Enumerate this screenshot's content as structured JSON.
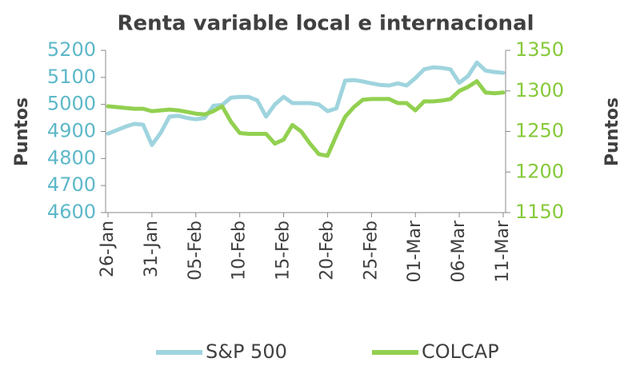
{
  "chart_data": {
    "type": "line",
    "title": "Renta variable local e internacional",
    "ylabel": "Puntos",
    "y2label": "Puntos",
    "categories": [
      "26-Jan",
      null,
      null,
      null,
      null,
      "31-Jan",
      null,
      null,
      null,
      null,
      "05-Feb",
      null,
      null,
      null,
      null,
      "10-Feb",
      null,
      null,
      null,
      null,
      "15-Feb",
      null,
      null,
      null,
      null,
      "20-Feb",
      null,
      null,
      null,
      null,
      "25-Feb",
      null,
      null,
      null,
      null,
      "01-Mar",
      null,
      null,
      null,
      null,
      "06-Mar",
      null,
      null,
      null,
      null,
      "11-Mar"
    ],
    "series": [
      {
        "name": "S&P 500",
        "color": "#9fd4de",
        "axis": "y",
        "values": [
          4892,
          4905,
          4918,
          4928,
          4925,
          4850,
          4895,
          4955,
          4958,
          4950,
          4945,
          4950,
          4995,
          4998,
          5025,
          5028,
          5028,
          5015,
          4955,
          5000,
          5028,
          5005,
          5005,
          5005,
          5000,
          4975,
          4985,
          5088,
          5090,
          5085,
          5078,
          5072,
          5070,
          5078,
          5070,
          5097,
          5130,
          5137,
          5135,
          5130,
          5080,
          5105,
          5155,
          5125,
          5120,
          5117
        ]
      },
      {
        "name": "COLCAP",
        "color": "#92d050",
        "axis": "y2",
        "values": [
          1281,
          1280,
          1279,
          1278,
          1278,
          1275,
          1276,
          1277,
          1276,
          1274,
          1272,
          1271,
          1275,
          1281,
          1262,
          1248,
          1247,
          1247,
          1247,
          1235,
          1240,
          1258,
          1250,
          1235,
          1222,
          1220,
          1245,
          1268,
          1280,
          1289,
          1290,
          1290,
          1290,
          1285,
          1285,
          1276,
          1287,
          1287,
          1288,
          1290,
          1300,
          1305,
          1312,
          1298,
          1297,
          1298
        ]
      }
    ],
    "ylim": [
      4600,
      5200
    ],
    "yticks": [
      4600,
      4700,
      4800,
      4900,
      5000,
      5100,
      5200
    ],
    "y2lim": [
      1150,
      1350
    ],
    "y2ticks": [
      1150,
      1200,
      1250,
      1300,
      1350
    ],
    "ytick_color": "#5db8c8",
    "y2tick_color": "#86c93a",
    "legend": "bottom"
  }
}
